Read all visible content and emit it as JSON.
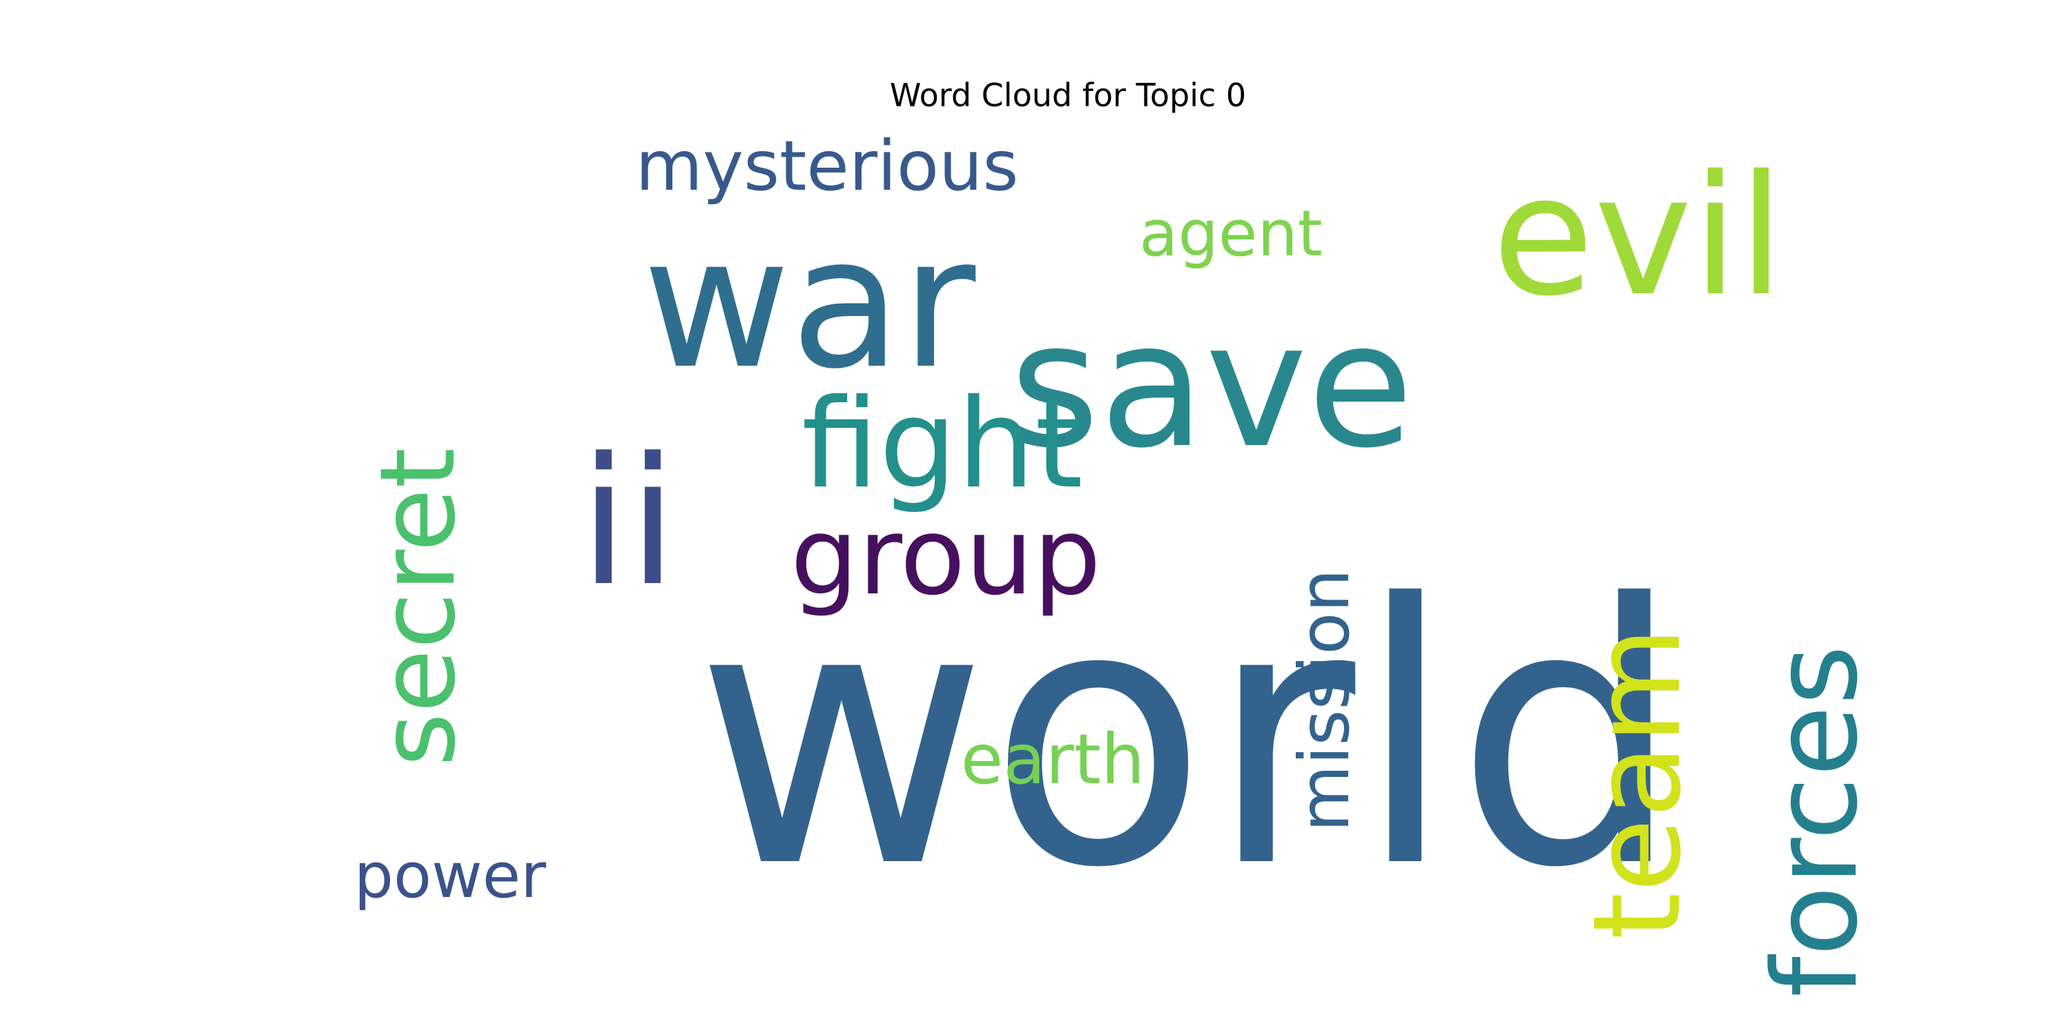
{
  "chart_data": {
    "type": "wordcloud",
    "title": "Word Cloud for Topic 0",
    "words": [
      {
        "text": "world",
        "color": "#33638d"
      },
      {
        "text": "save",
        "color": "#29888e"
      },
      {
        "text": "war",
        "color": "#2f6e8e"
      },
      {
        "text": "evil",
        "color": "#a0da39"
      },
      {
        "text": "ii",
        "color": "#3d4d8a"
      },
      {
        "text": "fight",
        "color": "#23908b"
      },
      {
        "text": "team",
        "color": "#d2e21b"
      },
      {
        "text": "forces",
        "color": "#24808e"
      },
      {
        "text": "secret",
        "color": "#4ac16d"
      },
      {
        "text": "group",
        "color": "#46105f"
      },
      {
        "text": "mission",
        "color": "#33638d"
      },
      {
        "text": "earth",
        "color": "#77d153"
      },
      {
        "text": "mysterious",
        "color": "#38598c"
      },
      {
        "text": "agent",
        "color": "#7ed34f"
      },
      {
        "text": "power",
        "color": "#3b528b"
      }
    ]
  }
}
